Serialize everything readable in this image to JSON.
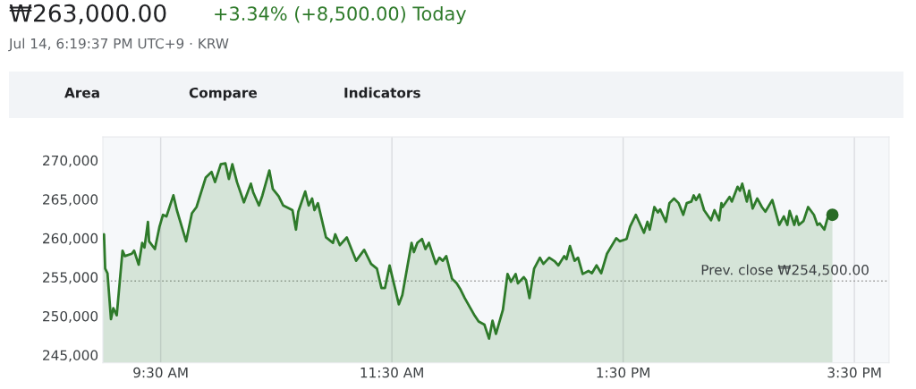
{
  "chart_data": {
    "type": "area",
    "title": "₩263,000.00",
    "subtitle": "+3.34% (+8,500.00) Today",
    "annotations": [
      "Jul 14, 6:19:37 PM UTC+9 · KRW",
      "Area",
      "Compare",
      "Indicators"
    ],
    "series": [
      {
        "color": "#2e7a2a",
        "marker": "none",
        "x": [
          9.0,
          9.01,
          9.02,
          9.04,
          9.07,
          9.09,
          9.12,
          9.17,
          9.19,
          9.25,
          9.27,
          9.31,
          9.34,
          9.36,
          9.39,
          9.4,
          9.45,
          9.49,
          9.52,
          9.55,
          9.61,
          9.64,
          9.72,
          9.77,
          9.81,
          9.89,
          9.94,
          9.97,
          10.02,
          10.06,
          10.09,
          10.12,
          10.16,
          10.22,
          10.28,
          10.3,
          10.35,
          10.38,
          10.44,
          10.47,
          10.52,
          10.56,
          10.64,
          10.67,
          10.69,
          10.75,
          10.78,
          10.81,
          10.83,
          10.86,
          10.93,
          10.99,
          11.01,
          11.05,
          11.11,
          11.19,
          11.26,
          11.32,
          11.37,
          11.41,
          11.44,
          11.48,
          11.56,
          11.59,
          11.67,
          11.69,
          11.72,
          11.76,
          11.79,
          11.82,
          11.88,
          11.91,
          11.94,
          11.97,
          12.02,
          12.06,
          12.09,
          12.13,
          12.21,
          12.25,
          12.3,
          12.34,
          12.37,
          12.4,
          12.46,
          12.5,
          12.53,
          12.57,
          12.59,
          12.64,
          12.66,
          12.69,
          12.73,
          12.78,
          12.81,
          12.86,
          12.91,
          12.94,
          12.99,
          13.01,
          13.04,
          13.08,
          13.11,
          13.15,
          13.2,
          13.23,
          13.27,
          13.31,
          13.36,
          13.44,
          13.47,
          13.53,
          13.56,
          13.61,
          13.68,
          13.71,
          13.73,
          13.77,
          13.8,
          13.82,
          13.87,
          13.9,
          13.94,
          13.98,
          14.02,
          14.05,
          14.09,
          14.11,
          14.13,
          14.16,
          14.2,
          14.26,
          14.29,
          14.33,
          14.35,
          14.36,
          14.42,
          14.44,
          14.49,
          14.51,
          14.53,
          14.57,
          14.59,
          14.62,
          14.66,
          14.7,
          14.73,
          14.79,
          14.85,
          14.89,
          14.92,
          14.94,
          14.98,
          15.0,
          15.02,
          15.06,
          15.1,
          15.15,
          15.18,
          15.2,
          15.24,
          15.28,
          15.31
        ],
        "values": [
          259900,
          260500,
          256100,
          255500,
          249600,
          251000,
          250100,
          258400,
          257700,
          258000,
          258400,
          256600,
          259400,
          258800,
          262100,
          259600,
          258600,
          261500,
          263000,
          262800,
          265500,
          263600,
          259600,
          263200,
          264000,
          267800,
          268500,
          267200,
          269500,
          269600,
          267600,
          269500,
          267200,
          264600,
          267000,
          265900,
          264200,
          265500,
          268700,
          266300,
          265400,
          264200,
          263600,
          261100,
          263400,
          266000,
          264200,
          265100,
          263600,
          264500,
          260100,
          259400,
          260500,
          259100,
          260100,
          257100,
          258500,
          256700,
          256100,
          253600,
          253600,
          256500,
          251500,
          252700,
          259400,
          258200,
          259400,
          259900,
          258600,
          259400,
          256700,
          257500,
          257100,
          257700,
          254800,
          254200,
          253500,
          252300,
          250200,
          249300,
          248900,
          247100,
          249400,
          247700,
          250800,
          255400,
          254400,
          255400,
          254200,
          255000,
          254600,
          252300,
          256100,
          257500,
          256700,
          257500,
          257000,
          256500,
          257700,
          257300,
          259000,
          257100,
          257500,
          255400,
          255800,
          255500,
          256500,
          255500,
          258000,
          260000,
          259600,
          259900,
          261500,
          263000,
          260700,
          262100,
          261100,
          264000,
          263300,
          263700,
          262100,
          264500,
          265100,
          264500,
          263000,
          264500,
          264700,
          265500,
          264900,
          265600,
          263600,
          262300,
          263600,
          262300,
          264500,
          264000,
          265300,
          264700,
          266600,
          266100,
          267000,
          264700,
          266100,
          263800,
          265100,
          264000,
          263400,
          264900,
          261700,
          262800,
          261700,
          263500,
          261700,
          262800,
          261700,
          262200,
          264000,
          263000,
          261700,
          261900,
          261100,
          263200,
          263000
        ]
      },
      {
        "type": "scatter",
        "color": "#286b25",
        "marker": "circle",
        "x": [
          15.31
        ],
        "values": [
          263000
        ]
      }
    ],
    "xlim": [
      9.0,
      15.8
    ],
    "xticks": [
      {
        "value": 9.5,
        "label": "9:30 AM"
      },
      {
        "value": 11.5,
        "label": "11:30 AM"
      },
      {
        "value": 13.5,
        "label": "1:30 PM"
      },
      {
        "value": 15.5,
        "label": "3:30 PM"
      }
    ],
    "ylim": [
      244000,
      273000
    ],
    "yticks": [
      {
        "value": 245000,
        "label": "245,000"
      },
      {
        "value": 250000,
        "label": "250,000"
      },
      {
        "value": 255000,
        "label": "255,000"
      },
      {
        "value": 260000,
        "label": "260,000"
      },
      {
        "value": 265000,
        "label": "265,000"
      },
      {
        "value": 270000,
        "label": "270,000"
      }
    ],
    "ref_lines": [
      {
        "axis": "y",
        "value": 254500,
        "label": "Prev. close ₩254,500.00",
        "color": "#9e9e9e",
        "line_style": "dotted"
      }
    ],
    "grid": "x",
    "legend": false
  }
}
